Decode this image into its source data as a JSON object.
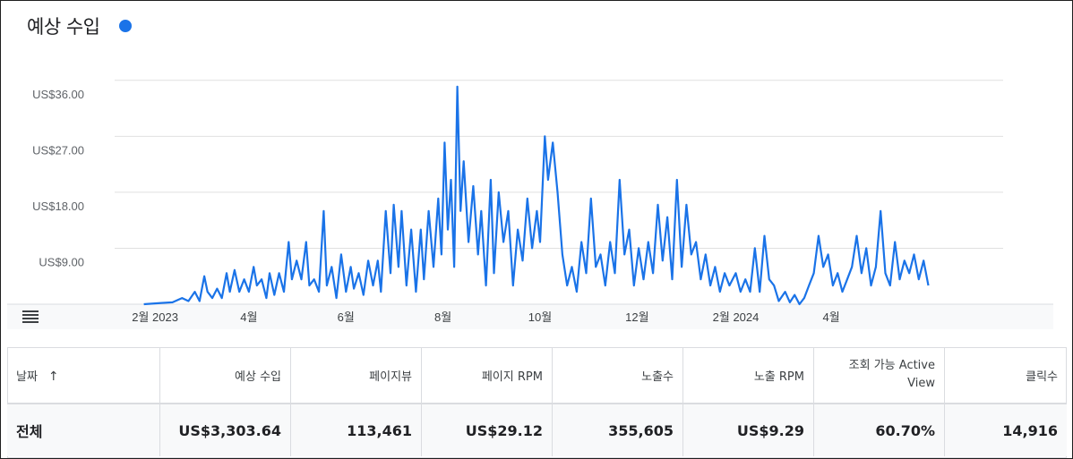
{
  "header": {
    "title": "예상 수입"
  },
  "colors": {
    "series": "#1a73e8",
    "grid": "#e0e0e0"
  },
  "chart_data": {
    "type": "line",
    "y_ticks": [
      "US$9.00",
      "US$18.00",
      "US$27.00",
      "US$36.00"
    ],
    "y_tick_values": [
      9,
      18,
      27,
      36
    ],
    "ylim": [
      0,
      40
    ],
    "x_range": [
      "2023-01-01",
      "2024-06-30"
    ],
    "x_ticks": [
      {
        "label": "2월 2023",
        "date": "2023-02-01"
      },
      {
        "label": "4월",
        "date": "2023-04-01"
      },
      {
        "label": "6월",
        "date": "2023-06-01"
      },
      {
        "label": "8월",
        "date": "2023-08-01"
      },
      {
        "label": "10월",
        "date": "2023-10-01"
      },
      {
        "label": "12월",
        "date": "2023-12-01"
      },
      {
        "label": "2월 2024",
        "date": "2024-02-01"
      },
      {
        "label": "4월",
        "date": "2024-04-01"
      }
    ],
    "grid": true,
    "series": [
      {
        "points": [
          [
            "2023-01-25",
            0
          ],
          [
            "2023-02-05",
            0.2
          ],
          [
            "2023-02-12",
            0.3
          ],
          [
            "2023-02-18",
            1
          ],
          [
            "2023-02-22",
            0.5
          ],
          [
            "2023-02-26",
            2
          ],
          [
            "2023-03-01",
            0.5
          ],
          [
            "2023-03-04",
            4.5
          ],
          [
            "2023-03-06",
            2
          ],
          [
            "2023-03-09",
            1
          ],
          [
            "2023-03-12",
            2.5
          ],
          [
            "2023-03-15",
            1
          ],
          [
            "2023-03-18",
            5
          ],
          [
            "2023-03-20",
            2
          ],
          [
            "2023-03-23",
            5.5
          ],
          [
            "2023-03-26",
            2
          ],
          [
            "2023-03-29",
            4
          ],
          [
            "2023-04-01",
            2
          ],
          [
            "2023-04-04",
            6
          ],
          [
            "2023-04-06",
            3
          ],
          [
            "2023-04-09",
            4
          ],
          [
            "2023-04-12",
            1
          ],
          [
            "2023-04-14",
            5
          ],
          [
            "2023-04-17",
            1.5
          ],
          [
            "2023-04-20",
            5
          ],
          [
            "2023-04-23",
            2
          ],
          [
            "2023-04-26",
            10
          ],
          [
            "2023-04-28",
            4
          ],
          [
            "2023-05-01",
            7
          ],
          [
            "2023-05-04",
            4
          ],
          [
            "2023-05-07",
            10
          ],
          [
            "2023-05-09",
            3
          ],
          [
            "2023-05-12",
            4
          ],
          [
            "2023-05-15",
            2
          ],
          [
            "2023-05-18",
            15
          ],
          [
            "2023-05-20",
            3
          ],
          [
            "2023-05-23",
            6
          ],
          [
            "2023-05-26",
            1
          ],
          [
            "2023-05-29",
            8
          ],
          [
            "2023-06-01",
            2
          ],
          [
            "2023-06-04",
            6
          ],
          [
            "2023-06-06",
            2.5
          ],
          [
            "2023-06-09",
            5
          ],
          [
            "2023-06-12",
            1.5
          ],
          [
            "2023-06-15",
            7
          ],
          [
            "2023-06-18",
            3
          ],
          [
            "2023-06-21",
            7
          ],
          [
            "2023-06-23",
            2
          ],
          [
            "2023-06-26",
            15
          ],
          [
            "2023-06-29",
            5
          ],
          [
            "2023-07-01",
            16
          ],
          [
            "2023-07-04",
            6
          ],
          [
            "2023-07-06",
            15
          ],
          [
            "2023-07-09",
            3
          ],
          [
            "2023-07-12",
            12
          ],
          [
            "2023-07-15",
            2
          ],
          [
            "2023-07-18",
            12
          ],
          [
            "2023-07-20",
            4
          ],
          [
            "2023-07-23",
            15
          ],
          [
            "2023-07-26",
            6
          ],
          [
            "2023-07-29",
            17
          ],
          [
            "2023-07-31",
            8
          ],
          [
            "2023-08-02",
            26
          ],
          [
            "2023-08-04",
            12
          ],
          [
            "2023-08-06",
            20
          ],
          [
            "2023-08-08",
            6
          ],
          [
            "2023-08-10",
            35
          ],
          [
            "2023-08-12",
            15
          ],
          [
            "2023-08-14",
            23
          ],
          [
            "2023-08-17",
            10
          ],
          [
            "2023-08-20",
            19
          ],
          [
            "2023-08-23",
            8
          ],
          [
            "2023-08-25",
            15
          ],
          [
            "2023-08-28",
            3
          ],
          [
            "2023-08-31",
            20
          ],
          [
            "2023-09-02",
            5
          ],
          [
            "2023-09-05",
            18
          ],
          [
            "2023-09-08",
            10
          ],
          [
            "2023-09-11",
            15
          ],
          [
            "2023-09-14",
            3
          ],
          [
            "2023-09-17",
            12
          ],
          [
            "2023-09-20",
            7
          ],
          [
            "2023-09-23",
            17
          ],
          [
            "2023-09-26",
            9
          ],
          [
            "2023-09-29",
            15
          ],
          [
            "2023-10-01",
            10
          ],
          [
            "2023-10-04",
            27
          ],
          [
            "2023-10-06",
            20
          ],
          [
            "2023-10-09",
            26
          ],
          [
            "2023-10-12",
            18
          ],
          [
            "2023-10-15",
            8
          ],
          [
            "2023-10-18",
            3
          ],
          [
            "2023-10-21",
            6
          ],
          [
            "2023-10-24",
            2
          ],
          [
            "2023-10-27",
            10
          ],
          [
            "2023-10-30",
            5
          ],
          [
            "2023-11-02",
            17
          ],
          [
            "2023-11-05",
            6
          ],
          [
            "2023-11-08",
            8
          ],
          [
            "2023-11-11",
            3
          ],
          [
            "2023-11-14",
            10
          ],
          [
            "2023-11-17",
            5
          ],
          [
            "2023-11-20",
            20
          ],
          [
            "2023-11-23",
            8
          ],
          [
            "2023-11-26",
            12
          ],
          [
            "2023-11-29",
            3
          ],
          [
            "2023-12-02",
            9
          ],
          [
            "2023-12-05",
            4
          ],
          [
            "2023-12-08",
            10
          ],
          [
            "2023-12-11",
            5
          ],
          [
            "2023-12-14",
            16
          ],
          [
            "2023-12-17",
            7
          ],
          [
            "2023-12-20",
            14
          ],
          [
            "2023-12-23",
            4
          ],
          [
            "2023-12-26",
            20
          ],
          [
            "2023-12-29",
            6
          ],
          [
            "2024-01-01",
            16
          ],
          [
            "2024-01-04",
            8
          ],
          [
            "2024-01-07",
            10
          ],
          [
            "2024-01-10",
            4
          ],
          [
            "2024-01-13",
            8
          ],
          [
            "2024-01-16",
            3
          ],
          [
            "2024-01-19",
            6
          ],
          [
            "2024-01-22",
            2
          ],
          [
            "2024-01-25",
            5
          ],
          [
            "2024-01-28",
            3
          ],
          [
            "2024-02-01",
            5
          ],
          [
            "2024-02-04",
            2
          ],
          [
            "2024-02-07",
            4
          ],
          [
            "2024-02-10",
            2
          ],
          [
            "2024-02-13",
            9
          ],
          [
            "2024-02-16",
            2
          ],
          [
            "2024-02-19",
            11
          ],
          [
            "2024-02-22",
            4
          ],
          [
            "2024-02-25",
            3
          ],
          [
            "2024-02-28",
            0.5
          ],
          [
            "2024-03-03",
            2
          ],
          [
            "2024-03-06",
            0.3
          ],
          [
            "2024-03-09",
            1.5
          ],
          [
            "2024-03-12",
            0
          ],
          [
            "2024-03-15",
            1
          ],
          [
            "2024-03-18",
            3
          ],
          [
            "2024-03-21",
            5
          ],
          [
            "2024-03-24",
            11
          ],
          [
            "2024-03-27",
            6
          ],
          [
            "2024-03-30",
            8
          ],
          [
            "2024-04-02",
            3
          ],
          [
            "2024-04-05",
            5
          ],
          [
            "2024-04-08",
            2
          ],
          [
            "2024-04-11",
            4
          ],
          [
            "2024-04-14",
            6
          ],
          [
            "2024-04-17",
            11
          ],
          [
            "2024-04-20",
            5
          ],
          [
            "2024-04-23",
            9
          ],
          [
            "2024-04-26",
            3
          ],
          [
            "2024-04-29",
            6
          ],
          [
            "2024-05-02",
            15
          ],
          [
            "2024-05-05",
            5
          ],
          [
            "2024-05-08",
            3
          ],
          [
            "2024-05-11",
            10
          ],
          [
            "2024-05-14",
            4
          ],
          [
            "2024-05-17",
            7
          ],
          [
            "2024-05-20",
            5
          ],
          [
            "2024-05-23",
            8
          ],
          [
            "2024-05-26",
            4
          ],
          [
            "2024-05-29",
            7
          ],
          [
            "2024-06-01",
            3
          ]
        ]
      }
    ]
  },
  "table": {
    "columns": [
      {
        "label": "날짜",
        "sort": "↑"
      },
      {
        "label": "예상 수입"
      },
      {
        "label": "페이지뷰"
      },
      {
        "label": "페이지 RPM"
      },
      {
        "label": "노출수"
      },
      {
        "label": "노출 RPM"
      },
      {
        "label": "조회 가능 Active View"
      },
      {
        "label": "클릭수"
      }
    ],
    "total_row": [
      "전체",
      "US$3,303.64",
      "113,461",
      "US$29.12",
      "355,605",
      "US$9.29",
      "60.70%",
      "14,916"
    ]
  }
}
